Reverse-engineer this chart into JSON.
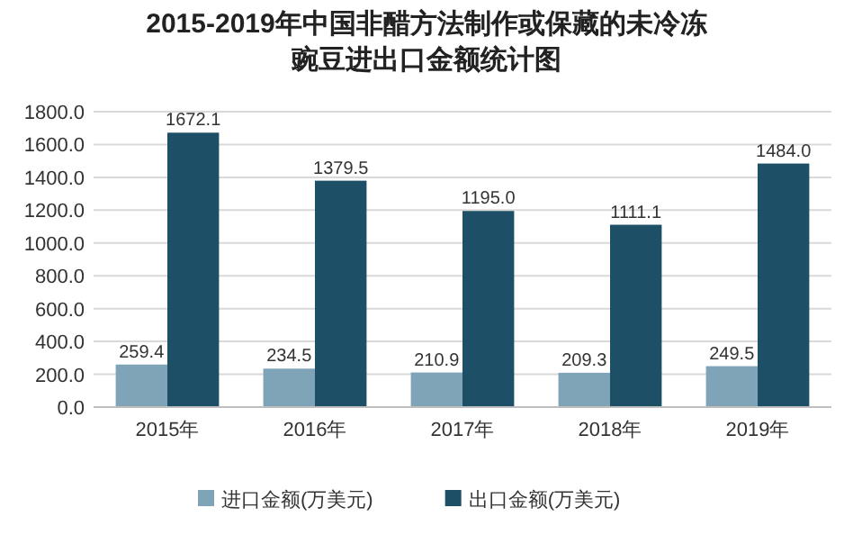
{
  "chart_data": {
    "type": "bar",
    "title": "2015-2019年中国非醋方法制作或保藏的未冷冻豌豆进出口金额统计图",
    "categories": [
      "2015年",
      "2016年",
      "2017年",
      "2018年",
      "2019年"
    ],
    "series": [
      {
        "name": "进口金额(万美元)",
        "color": "#7fa4b8",
        "values": [
          259.4,
          234.5,
          210.9,
          209.3,
          249.5
        ],
        "value_labels": [
          "259.4",
          "234.5",
          "210.9",
          "209.3",
          "249.5"
        ]
      },
      {
        "name": "出口金额(万美元)",
        "color": "#1d4f66",
        "values": [
          1672.1,
          1379.5,
          1195.0,
          1111.1,
          1484.0
        ],
        "value_labels": [
          "1672.1",
          "1379.5",
          "1195.0",
          "1111.1",
          "1484.0"
        ]
      }
    ],
    "ylim": [
      0,
      1800
    ],
    "yticks": [
      {
        "value": 0,
        "label": "0.0"
      },
      {
        "value": 200,
        "label": "200.0"
      },
      {
        "value": 400,
        "label": "400.0"
      },
      {
        "value": 600,
        "label": "600.0"
      },
      {
        "value": 800,
        "label": "800.0"
      },
      {
        "value": 1000,
        "label": "1000.0"
      },
      {
        "value": 1200,
        "label": "1200.0"
      },
      {
        "value": 1400,
        "label": "1400.0"
      },
      {
        "value": 1600,
        "label": "1600.0"
      },
      {
        "value": 1800,
        "label": "1800.0"
      }
    ],
    "grid": "y",
    "legend": "bottom"
  }
}
